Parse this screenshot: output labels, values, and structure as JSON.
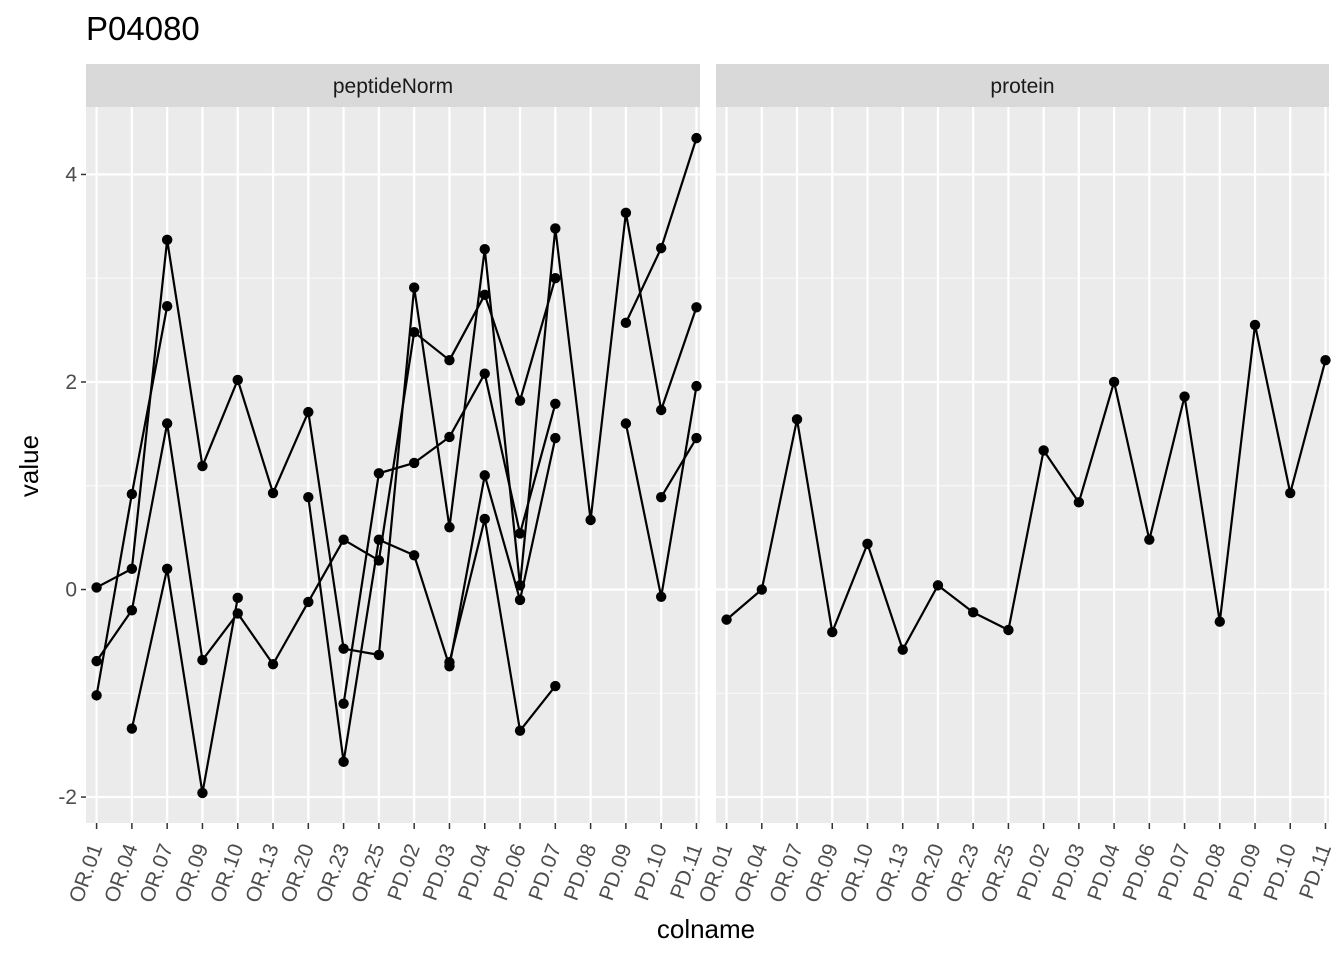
{
  "chart_data": {
    "type": "line",
    "title": "P04080",
    "xlabel": "colname",
    "ylabel": "value",
    "ylim": [
      -2.25,
      4.65
    ],
    "y_ticks": [
      -2,
      0,
      2,
      4
    ],
    "y_tick_labels": [
      "-2",
      "0",
      "2",
      "4"
    ],
    "grid": true,
    "background": "#EBEBEB",
    "strip_color": "#D9D9D9",
    "line_color": "#000000",
    "categories": [
      "OR.01",
      "OR.04",
      "OR.07",
      "OR.09",
      "OR.10",
      "OR.13",
      "OR.20",
      "OR.23",
      "OR.25",
      "PD.02",
      "PD.03",
      "PD.04",
      "PD.06",
      "PD.07",
      "PD.08",
      "PD.09",
      "PD.10",
      "PD.11"
    ],
    "panels": [
      {
        "name": "peptideNorm",
        "series": [
          {
            "values": [
              0.02,
              0.2,
              3.37,
              1.19,
              2.02,
              0.93,
              1.71,
              -0.57,
              -0.63,
              2.91,
              0.6,
              3.28,
              0.04,
              3.48,
              0.67,
              3.63,
              1.73,
              2.72
            ]
          },
          {
            "values": [
              -0.69,
              -0.2,
              1.6,
              -0.68,
              -0.23,
              -0.72,
              -0.12,
              0.48,
              0.28,
              2.48,
              2.21,
              2.84,
              1.82,
              3.0,
              null,
              2.57,
              3.29,
              4.35
            ]
          },
          {
            "values": [
              -1.02,
              0.92,
              2.73,
              null,
              null,
              null,
              null,
              -1.1,
              1.12,
              1.22,
              1.47,
              2.08,
              0.54,
              1.79,
              null,
              1.6,
              -0.07,
              1.96
            ]
          },
          {
            "values": [
              null,
              -1.34,
              0.2,
              -1.96,
              -0.08,
              null,
              0.89,
              -1.66,
              0.48,
              0.33,
              -0.74,
              1.1,
              -0.1,
              1.46,
              null,
              null,
              0.89,
              1.46
            ]
          },
          {
            "values": [
              null,
              null,
              null,
              null,
              null,
              null,
              null,
              null,
              null,
              null,
              -0.7,
              0.68,
              -1.36,
              -0.93,
              null,
              null,
              null,
              null
            ]
          }
        ]
      },
      {
        "name": "protein",
        "series": [
          {
            "values": [
              -0.29,
              0.0,
              1.64,
              -0.41,
              0.44,
              -0.58,
              0.04,
              -0.22,
              -0.39,
              1.34,
              0.84,
              2.0,
              0.48,
              1.86,
              -0.31,
              2.55,
              0.93,
              2.21
            ]
          }
        ]
      }
    ]
  }
}
